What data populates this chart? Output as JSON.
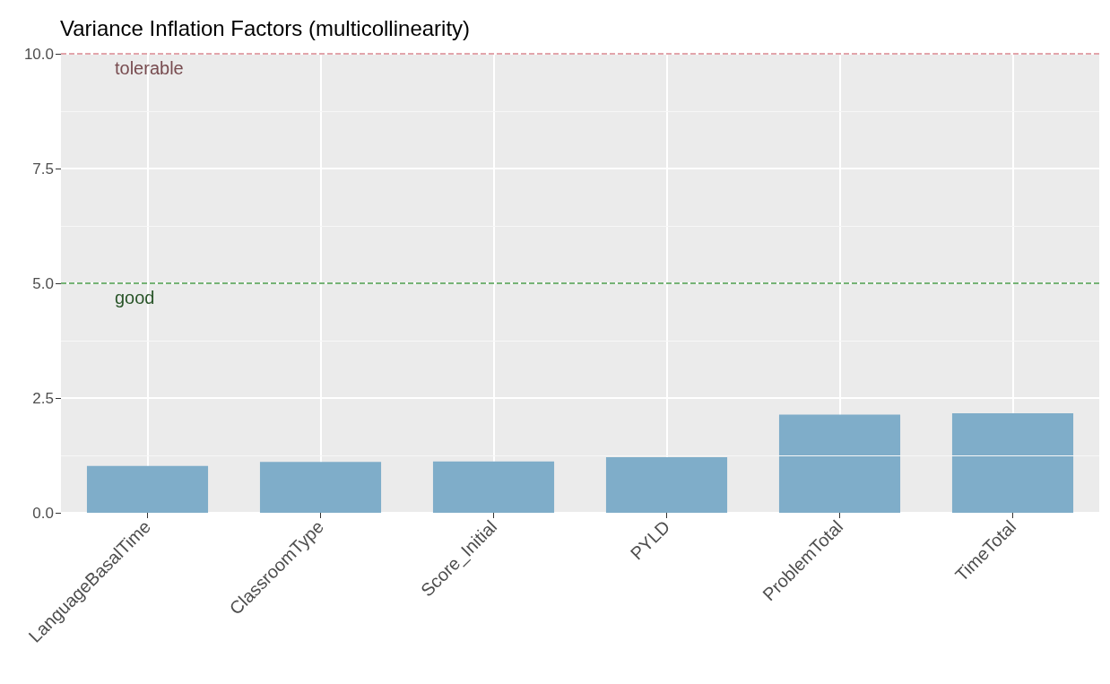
{
  "chart_data": {
    "type": "bar",
    "title": "Variance Inflation Factors (multicollinearity)",
    "categories": [
      "LanguageBasalTime",
      "ClassroomType",
      "Score_Initial",
      "PYLD",
      "ProblemTotal",
      "TimeTotal"
    ],
    "values": [
      1.02,
      1.11,
      1.12,
      1.21,
      2.14,
      2.17
    ],
    "color": "#7fadc9",
    "ylim": [
      0,
      10
    ],
    "yticks": [
      {
        "value": 0,
        "label": "0.0"
      },
      {
        "value": 2.5,
        "label": "2.5"
      },
      {
        "value": 5,
        "label": "5.0"
      },
      {
        "value": 7.5,
        "label": "7.5"
      },
      {
        "value": 10,
        "label": "10.0"
      }
    ],
    "grid": true,
    "ref_lines": [
      {
        "axis": "y",
        "value": 10,
        "label": "tolerable",
        "color": "#d98890",
        "line_style": "dashed"
      },
      {
        "axis": "y",
        "value": 5,
        "label": "good",
        "color": "#4a9a4a",
        "line_style": "dashed"
      }
    ]
  }
}
